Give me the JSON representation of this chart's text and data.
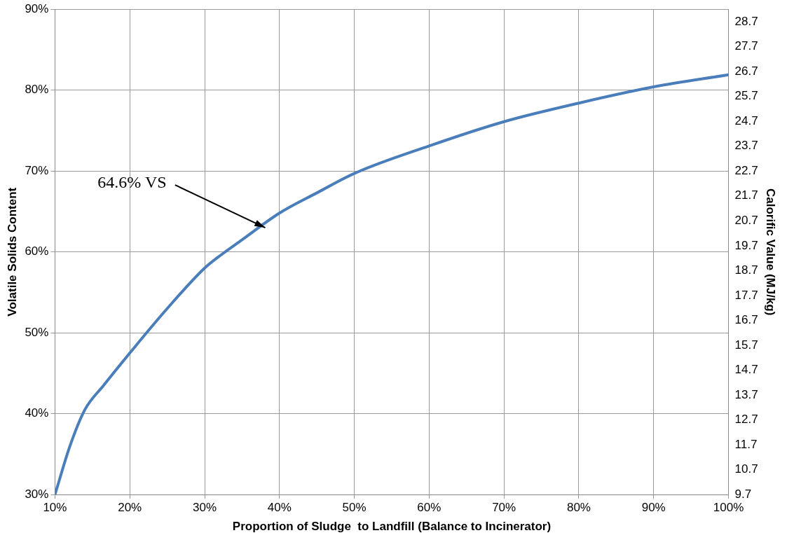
{
  "chart_data": {
    "type": "line",
    "xlabel": "Proportion of Sludge  to Landfill (Balance to Incinerator)",
    "ylabel": "Volatile Solids Content",
    "y2label": "Calorific Value (MJ/kg)",
    "x": [
      10,
      12,
      14,
      16.5,
      20,
      25,
      30,
      32,
      35,
      40,
      45,
      50,
      60,
      70,
      80,
      90,
      100
    ],
    "series": [
      {
        "color": "#4a7ebb",
        "values": [
          30,
          36,
          40.5,
          43.5,
          47.5,
          53,
          58,
          59.5,
          61.5,
          64.8,
          67.3,
          69.7,
          73.1,
          76.1,
          78.4,
          80.4,
          81.9
        ]
      }
    ],
    "xlim": [
      10,
      100
    ],
    "xticks": [
      {
        "value": 10,
        "label": "10%"
      },
      {
        "value": 20,
        "label": "20%"
      },
      {
        "value": 30,
        "label": "30%"
      },
      {
        "value": 40,
        "label": "40%"
      },
      {
        "value": 50,
        "label": "50%"
      },
      {
        "value": 60,
        "label": "60%"
      },
      {
        "value": 70,
        "label": "70%"
      },
      {
        "value": 80,
        "label": "80%"
      },
      {
        "value": 90,
        "label": "90%"
      },
      {
        "value": 100,
        "label": "100%"
      }
    ],
    "ylim": [
      30,
      90
    ],
    "yticks": [
      {
        "value": 30,
        "label": "30%"
      },
      {
        "value": 40,
        "label": "40%"
      },
      {
        "value": 50,
        "label": "50%"
      },
      {
        "value": 60,
        "label": "60%"
      },
      {
        "value": 70,
        "label": "70%"
      },
      {
        "value": 80,
        "label": "80%"
      },
      {
        "value": 90,
        "label": "90%"
      }
    ],
    "y2lim": [
      9.7,
      29.2
    ],
    "y2ticks": [
      9.7,
      10.7,
      11.7,
      12.7,
      13.7,
      14.7,
      15.7,
      16.7,
      17.7,
      18.7,
      19.7,
      20.7,
      21.7,
      22.7,
      23.7,
      24.7,
      25.7,
      26.7,
      27.7,
      28.7
    ],
    "annotations": [
      {
        "text": "64.6% VS",
        "x": 38.1,
        "y": 63
      }
    ],
    "grid": true,
    "legend": false,
    "marker": "none",
    "line_style": "solid"
  }
}
